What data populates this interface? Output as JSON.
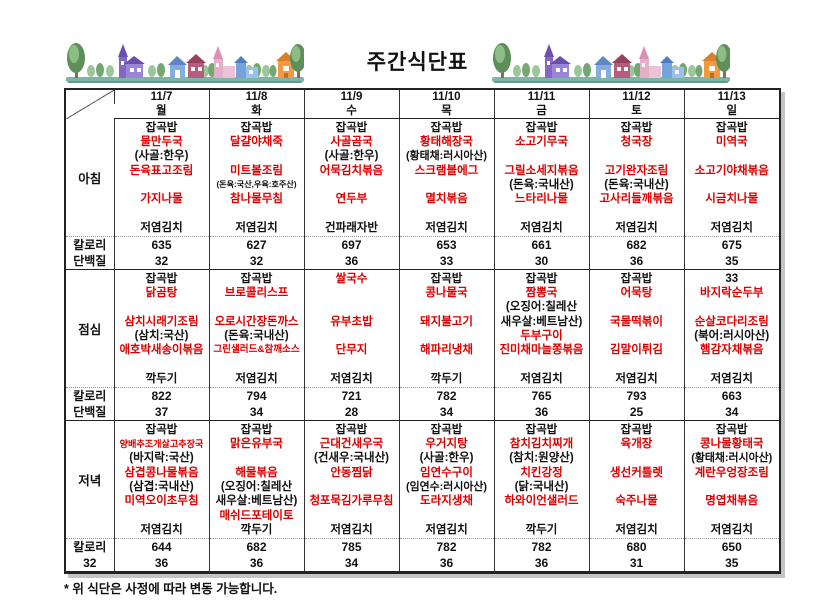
{
  "title": "주간식단표",
  "footer_note": "* 위 식단은 사정에 따라 변동 가능합니다.",
  "decorations": {
    "left": "village-illustration",
    "right": "village-illustration"
  },
  "colors": {
    "menu_red": "#dd0000",
    "text_black": "#111111",
    "border": "#222222",
    "ground_teal": "#7fb5a9"
  },
  "labels": {
    "calories": "칼로리",
    "protein": "단백질"
  },
  "columns": [
    {
      "date": "11/7",
      "day": "월"
    },
    {
      "date": "11/8",
      "day": "화"
    },
    {
      "date": "11/9",
      "day": "수"
    },
    {
      "date": "11/10",
      "day": "목"
    },
    {
      "date": "11/11",
      "day": "금"
    },
    {
      "date": "11/12",
      "day": "토"
    },
    {
      "date": "11/13",
      "day": "일"
    }
  ],
  "meals": [
    {
      "label": "아침",
      "protein_label": "단백질",
      "menus": [
        [
          [
            "잡곡밥",
            "k"
          ],
          [
            "물만두국",
            "r"
          ],
          [
            "(사골:한우)",
            "k"
          ],
          [
            "돈육표고조림",
            "r"
          ],
          [
            "",
            ""
          ],
          [
            "가지나물",
            "r"
          ],
          [
            "",
            ""
          ],
          [
            "저염김치",
            "k"
          ]
        ],
        [
          [
            "잡곡밥",
            "k"
          ],
          [
            "달걀야채죽",
            "r"
          ],
          [
            "",
            ""
          ],
          [
            "미트볼조림",
            "r"
          ],
          [
            "(돈육:국산,우육:호주산)",
            "k"
          ],
          [
            "참나물무침",
            "r"
          ],
          [
            "",
            ""
          ],
          [
            "저염김치",
            "k"
          ]
        ],
        [
          [
            "잡곡밥",
            "k"
          ],
          [
            "사골곰국",
            "r"
          ],
          [
            "(사골:한우)",
            "k"
          ],
          [
            "어묵김치볶음",
            "r"
          ],
          [
            "",
            ""
          ],
          [
            "연두부",
            "r"
          ],
          [
            "",
            ""
          ],
          [
            "건파래자반",
            "k"
          ]
        ],
        [
          [
            "잡곡밥",
            "k"
          ],
          [
            "황태해장국",
            "r"
          ],
          [
            "(황태채:러시아산)",
            "k"
          ],
          [
            "스크램블에그",
            "r"
          ],
          [
            "",
            ""
          ],
          [
            "멸치볶음",
            "r"
          ],
          [
            "",
            ""
          ],
          [
            "저염김치",
            "k"
          ]
        ],
        [
          [
            "잡곡밥",
            "k"
          ],
          [
            "소고기무국",
            "r"
          ],
          [
            "",
            ""
          ],
          [
            "그릴소세지볶음",
            "r"
          ],
          [
            "(돈육:국내산)",
            "k"
          ],
          [
            "느타리나물",
            "r"
          ],
          [
            "",
            ""
          ],
          [
            "저염김치",
            "k"
          ]
        ],
        [
          [
            "잡곡밥",
            "k"
          ],
          [
            "청국장",
            "r"
          ],
          [
            "",
            ""
          ],
          [
            "고기완자조림",
            "r"
          ],
          [
            "(돈육:국내산)",
            "k"
          ],
          [
            "고사리들깨볶음",
            "r"
          ],
          [
            "",
            ""
          ],
          [
            "저염김치",
            "k"
          ]
        ],
        [
          [
            "잡곡밥",
            "k"
          ],
          [
            "미역국",
            "r"
          ],
          [
            "",
            ""
          ],
          [
            "소고기야채볶음",
            "r"
          ],
          [
            "",
            ""
          ],
          [
            "시금치나물",
            "r"
          ],
          [
            "",
            ""
          ],
          [
            "저염김치",
            "k"
          ]
        ]
      ],
      "calories": [
        "635",
        "627",
        "697",
        "653",
        "661",
        "682",
        "675"
      ],
      "protein": [
        "32",
        "32",
        "36",
        "33",
        "30",
        "36",
        "35"
      ]
    },
    {
      "label": "점심",
      "protein_label": "단백질",
      "menus": [
        [
          [
            "잡곡밥",
            "k"
          ],
          [
            "닭곰탕",
            "r"
          ],
          [
            "",
            ""
          ],
          [
            "삼치시래기조림",
            "r"
          ],
          [
            "(삼치:국산)",
            "k"
          ],
          [
            "애호박새송이볶음",
            "r"
          ],
          [
            "",
            ""
          ],
          [
            "깍두기",
            "k"
          ]
        ],
        [
          [
            "잡곡밥",
            "k"
          ],
          [
            "브로콜리스프",
            "r"
          ],
          [
            "",
            ""
          ],
          [
            "오로시간장돈까스",
            "r"
          ],
          [
            "(돈육:국내산)",
            "k"
          ],
          [
            "그린샐러드&참깨소스",
            "r"
          ],
          [
            "",
            ""
          ],
          [
            "저염김치",
            "k"
          ]
        ],
        [
          [
            "쌀국수",
            "r"
          ],
          [
            "",
            ""
          ],
          [
            "",
            ""
          ],
          [
            "유부초밥",
            "r"
          ],
          [
            "",
            ""
          ],
          [
            "단무지",
            "r"
          ],
          [
            "",
            ""
          ],
          [
            "저염김치",
            "k"
          ]
        ],
        [
          [
            "잡곡밥",
            "k"
          ],
          [
            "콩나물국",
            "r"
          ],
          [
            "",
            ""
          ],
          [
            "돼지불고기",
            "r"
          ],
          [
            "",
            ""
          ],
          [
            "해파리냉채",
            "r"
          ],
          [
            "",
            ""
          ],
          [
            "깍두기",
            "k"
          ]
        ],
        [
          [
            "잡곡밥",
            "k"
          ],
          [
            "짬뽕국",
            "r"
          ],
          [
            "(오징어:칠레산",
            "k"
          ],
          [
            "새우살:베트남산)",
            "k"
          ],
          [
            "두부구이",
            "r"
          ],
          [
            "진미채마늘쫑볶음",
            "r"
          ],
          [
            "",
            ""
          ],
          [
            "저염김치",
            "k"
          ]
        ],
        [
          [
            "잡곡밥",
            "k"
          ],
          [
            "어묵탕",
            "r"
          ],
          [
            "",
            ""
          ],
          [
            "국물떡볶이",
            "r"
          ],
          [
            "",
            ""
          ],
          [
            "김말이튀김",
            "r"
          ],
          [
            "",
            ""
          ],
          [
            "저염김치",
            "k"
          ]
        ],
        [
          [
            "33",
            "k"
          ],
          [
            "바지락순두부",
            "r"
          ],
          [
            "",
            ""
          ],
          [
            "순살코다리조림",
            "r"
          ],
          [
            "(북어:러시아산)",
            "k"
          ],
          [
            "햄감자채볶음",
            "r"
          ],
          [
            "",
            ""
          ],
          [
            "저염김치",
            "k"
          ]
        ]
      ],
      "calories": [
        "822",
        "794",
        "721",
        "782",
        "765",
        "793",
        "663"
      ],
      "protein": [
        "37",
        "34",
        "28",
        "34",
        "36",
        "25",
        "34"
      ]
    },
    {
      "label": "저녁",
      "protein_label": "32",
      "menus": [
        [
          [
            "잡곡밥",
            "k"
          ],
          [
            "양배추조개살고추장국",
            "r"
          ],
          [
            "(바지락:국산)",
            "k"
          ],
          [
            "삼겹콩나물볶음",
            "r"
          ],
          [
            "(삼겹:국내산)",
            "k"
          ],
          [
            "미역오이초무침",
            "r"
          ],
          [
            "",
            ""
          ],
          [
            "저염김치",
            "k"
          ]
        ],
        [
          [
            "잡곡밥",
            "k"
          ],
          [
            "맑은유부국",
            "r"
          ],
          [
            "",
            ""
          ],
          [
            "해물볶음",
            "r"
          ],
          [
            "(오징어:칠레산",
            "k"
          ],
          [
            "새우살:베트남산)",
            "k"
          ],
          [
            "매쉬드포테이토",
            "r"
          ],
          [
            "깍두기",
            "k"
          ]
        ],
        [
          [
            "잡곡밥",
            "k"
          ],
          [
            "근대건새우국",
            "r"
          ],
          [
            "(건새우:국내산)",
            "k"
          ],
          [
            "안동찜닭",
            "r"
          ],
          [
            "",
            ""
          ],
          [
            "청포묵김가루무침",
            "r"
          ],
          [
            "",
            ""
          ],
          [
            "저염김치",
            "k"
          ]
        ],
        [
          [
            "잡곡밥",
            "k"
          ],
          [
            "우거지탕",
            "r"
          ],
          [
            "(사골:한우)",
            "k"
          ],
          [
            "임연수구이",
            "r"
          ],
          [
            "(임연수:러시아산)",
            "k"
          ],
          [
            "도라지생채",
            "r"
          ],
          [
            "",
            ""
          ],
          [
            "저염김치",
            "k"
          ]
        ],
        [
          [
            "잡곡밥",
            "k"
          ],
          [
            "참치김치찌개",
            "r"
          ],
          [
            "(참치:원양산)",
            "k"
          ],
          [
            "치킨강정",
            "r"
          ],
          [
            "(닭:국내산)",
            "k"
          ],
          [
            "하와이언샐러드",
            "r"
          ],
          [
            "",
            ""
          ],
          [
            "깍두기",
            "k"
          ]
        ],
        [
          [
            "잡곡밥",
            "k"
          ],
          [
            "육개장",
            "r"
          ],
          [
            "",
            ""
          ],
          [
            "생선커틀렛",
            "r"
          ],
          [
            "",
            ""
          ],
          [
            "숙주나물",
            "r"
          ],
          [
            "",
            ""
          ],
          [
            "저염김치",
            "k"
          ]
        ],
        [
          [
            "잡곡밥",
            "k"
          ],
          [
            "콩나물황태국",
            "r"
          ],
          [
            "(황태채:러시아산)",
            "k"
          ],
          [
            "계란우엉장조림",
            "r"
          ],
          [
            "",
            ""
          ],
          [
            "명엽채볶음",
            "r"
          ],
          [
            "",
            ""
          ],
          [
            "저염김치",
            "k"
          ]
        ]
      ],
      "calories": [
        "644",
        "682",
        "785",
        "782",
        "782",
        "680",
        "650"
      ],
      "protein": [
        "36",
        "36",
        "34",
        "36",
        "36",
        "31",
        "35"
      ]
    }
  ]
}
